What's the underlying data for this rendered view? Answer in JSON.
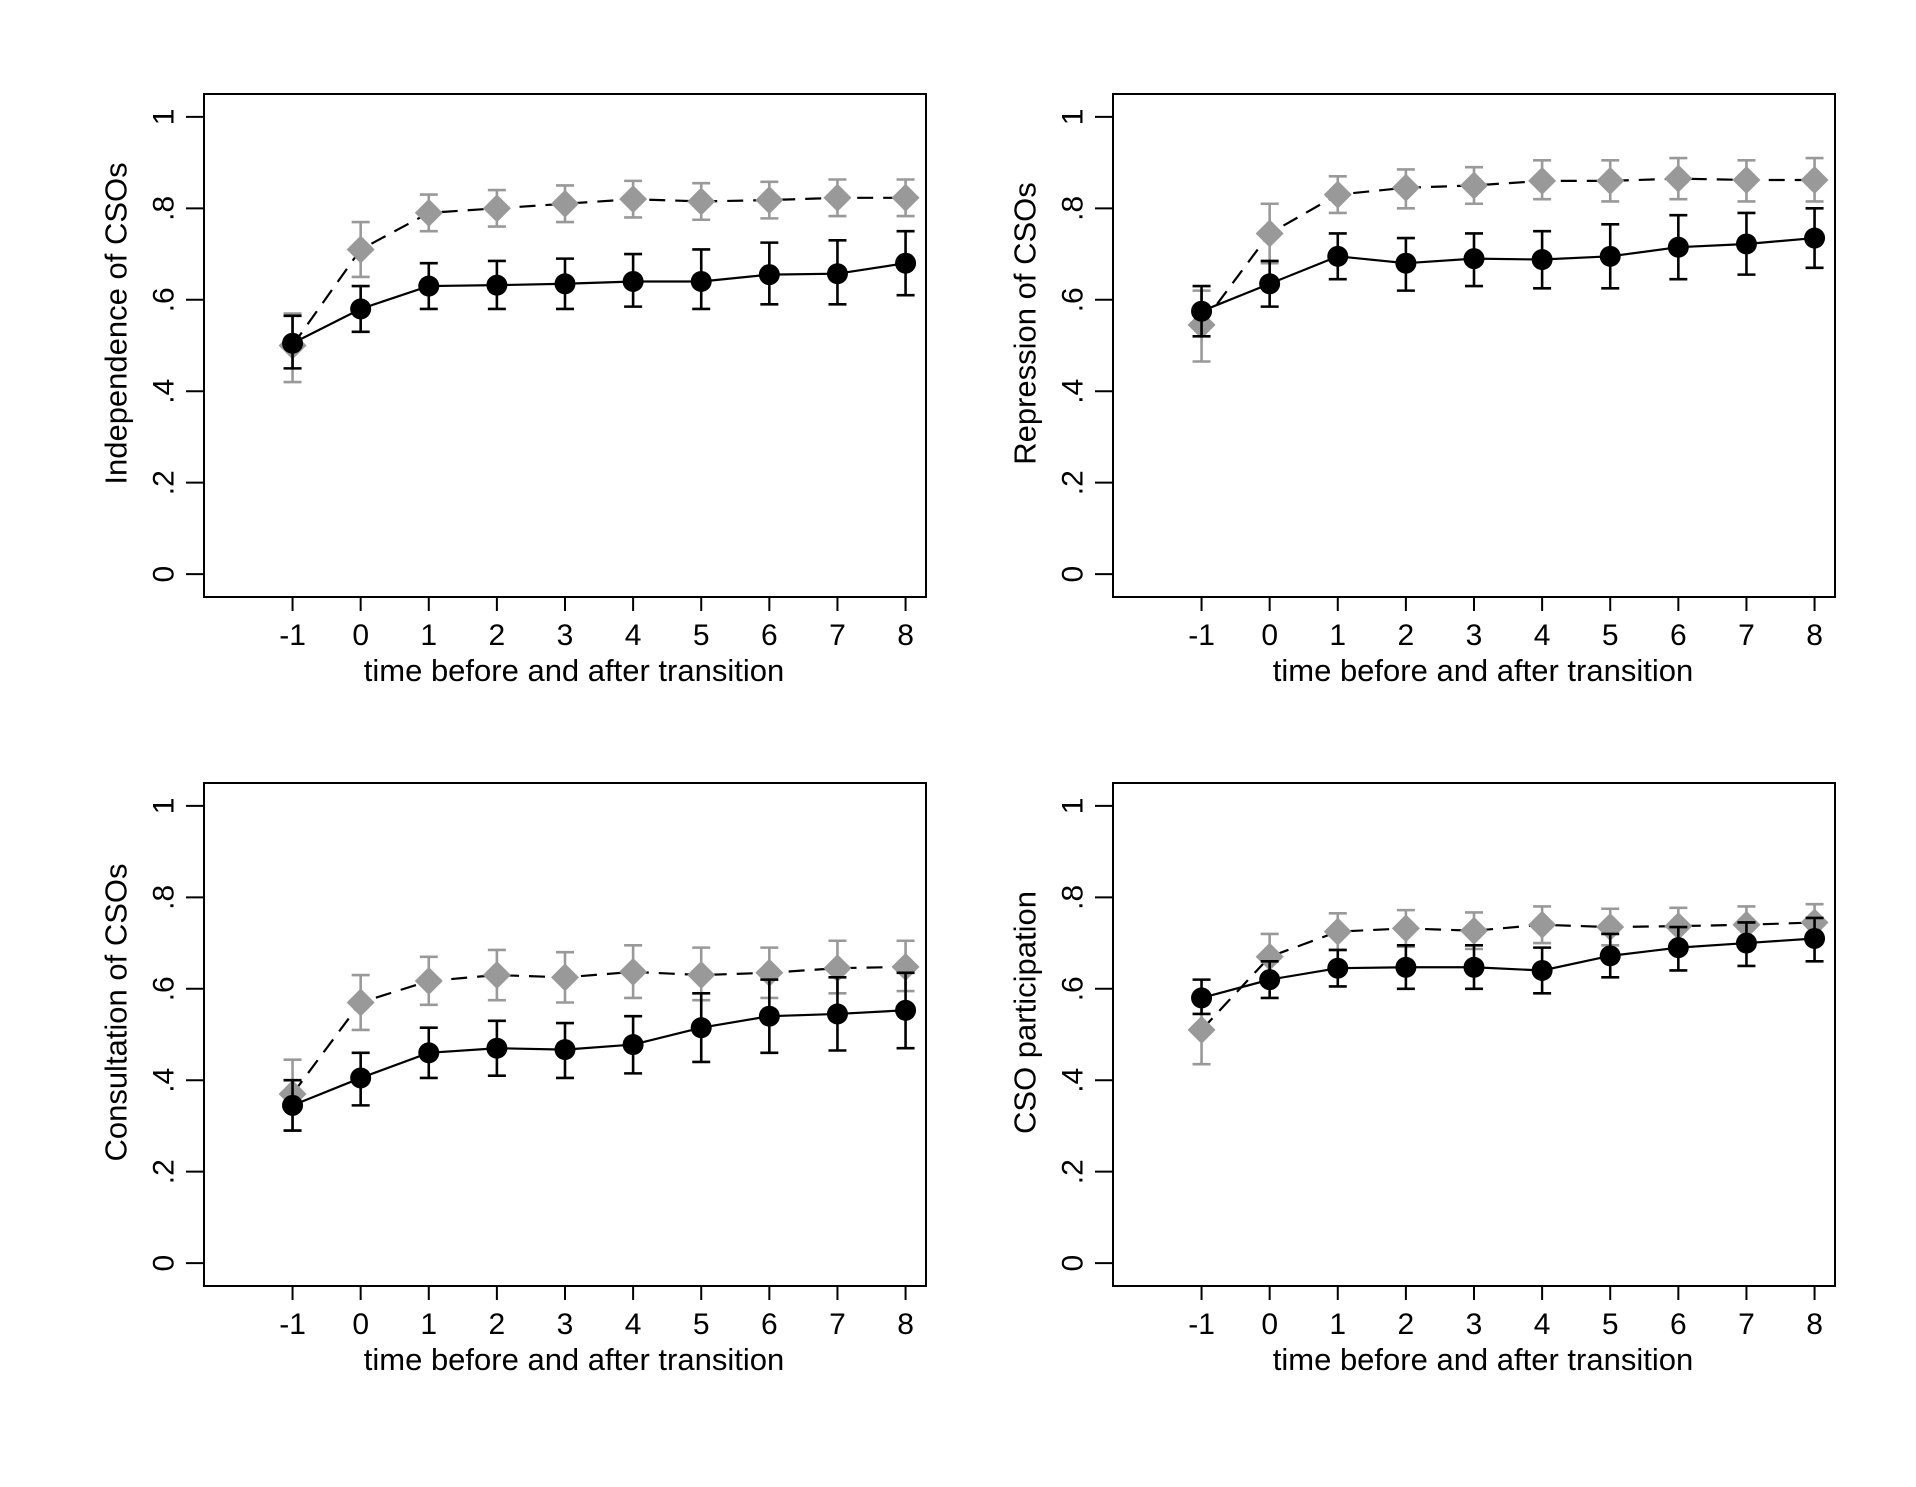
{
  "chart_data": [
    {
      "type": "line",
      "ylabel": "Independence of CSOs",
      "xlabel": "time before and after transition",
      "x": [
        -1,
        0,
        1,
        2,
        3,
        4,
        5,
        6,
        7,
        8
      ],
      "xlim": [
        -2.3,
        8.3
      ],
      "ylim": [
        -0.05,
        1.05
      ],
      "yticks": [
        0,
        0.2,
        0.4,
        0.6,
        0.8,
        1
      ],
      "ytick_labels": [
        "0",
        ".2",
        ".4",
        ".6",
        ".8",
        "1"
      ],
      "xtick_labels": [
        "-1",
        "0",
        "1",
        "2",
        "3",
        "4",
        "5",
        "6",
        "7",
        "8"
      ],
      "grid": false,
      "series": [
        {
          "style": "dashed",
          "marker": "diamond",
          "color": "#999999",
          "values": [
            0.5,
            0.71,
            0.79,
            0.8,
            0.81,
            0.82,
            0.815,
            0.818,
            0.823,
            0.823
          ],
          "lower": [
            0.42,
            0.65,
            0.75,
            0.76,
            0.77,
            0.78,
            0.775,
            0.778,
            0.783,
            0.783
          ],
          "upper": [
            0.57,
            0.77,
            0.83,
            0.84,
            0.85,
            0.86,
            0.855,
            0.858,
            0.863,
            0.863
          ]
        },
        {
          "style": "solid",
          "marker": "circle",
          "color": "#000000",
          "values": [
            0.505,
            0.58,
            0.63,
            0.632,
            0.635,
            0.64,
            0.64,
            0.655,
            0.657,
            0.68
          ],
          "lower": [
            0.45,
            0.53,
            0.58,
            0.58,
            0.58,
            0.585,
            0.58,
            0.59,
            0.59,
            0.61
          ],
          "upper": [
            0.565,
            0.63,
            0.68,
            0.685,
            0.69,
            0.7,
            0.71,
            0.725,
            0.73,
            0.75
          ]
        }
      ]
    },
    {
      "type": "line",
      "ylabel": "Repression of CSOs",
      "xlabel": "time before and after transition",
      "x": [
        -1,
        0,
        1,
        2,
        3,
        4,
        5,
        6,
        7,
        8
      ],
      "xlim": [
        -2.3,
        8.3
      ],
      "ylim": [
        -0.05,
        1.05
      ],
      "yticks": [
        0,
        0.2,
        0.4,
        0.6,
        0.8,
        1
      ],
      "ytick_labels": [
        "0",
        ".2",
        ".4",
        ".6",
        ".8",
        "1"
      ],
      "xtick_labels": [
        "-1",
        "0",
        "1",
        "2",
        "3",
        "4",
        "5",
        "6",
        "7",
        "8"
      ],
      "grid": false,
      "series": [
        {
          "style": "dashed",
          "marker": "diamond",
          "color": "#999999",
          "values": [
            0.545,
            0.745,
            0.83,
            0.845,
            0.85,
            0.86,
            0.86,
            0.865,
            0.862,
            0.862
          ],
          "lower": [
            0.465,
            0.68,
            0.79,
            0.8,
            0.81,
            0.82,
            0.815,
            0.82,
            0.815,
            0.815
          ],
          "upper": [
            0.62,
            0.81,
            0.87,
            0.885,
            0.89,
            0.905,
            0.905,
            0.91,
            0.905,
            0.91
          ]
        },
        {
          "style": "solid",
          "marker": "circle",
          "color": "#000000",
          "values": [
            0.575,
            0.635,
            0.695,
            0.68,
            0.69,
            0.688,
            0.695,
            0.715,
            0.722,
            0.735
          ],
          "lower": [
            0.52,
            0.585,
            0.645,
            0.62,
            0.63,
            0.625,
            0.625,
            0.645,
            0.655,
            0.67
          ],
          "upper": [
            0.63,
            0.685,
            0.745,
            0.735,
            0.745,
            0.75,
            0.765,
            0.785,
            0.79,
            0.8
          ]
        }
      ]
    },
    {
      "type": "line",
      "ylabel": "Consultation of CSOs",
      "xlabel": "time before and after transition",
      "x": [
        -1,
        0,
        1,
        2,
        3,
        4,
        5,
        6,
        7,
        8
      ],
      "xlim": [
        -2.3,
        8.3
      ],
      "ylim": [
        -0.05,
        1.05
      ],
      "yticks": [
        0,
        0.2,
        0.4,
        0.6,
        0.8,
        1
      ],
      "ytick_labels": [
        "0",
        ".2",
        ".4",
        ".6",
        ".8",
        "1"
      ],
      "xtick_labels": [
        "-1",
        "0",
        "1",
        "2",
        "3",
        "4",
        "5",
        "6",
        "7",
        "8"
      ],
      "grid": false,
      "series": [
        {
          "style": "dashed",
          "marker": "diamond",
          "color": "#999999",
          "values": [
            0.37,
            0.57,
            0.617,
            0.63,
            0.625,
            0.637,
            0.63,
            0.635,
            0.645,
            0.648
          ],
          "lower": [
            0.29,
            0.51,
            0.565,
            0.575,
            0.57,
            0.58,
            0.575,
            0.58,
            0.59,
            0.595
          ],
          "upper": [
            0.445,
            0.63,
            0.67,
            0.685,
            0.68,
            0.695,
            0.69,
            0.69,
            0.705,
            0.705
          ]
        },
        {
          "style": "solid",
          "marker": "circle",
          "color": "#000000",
          "values": [
            0.345,
            0.405,
            0.46,
            0.47,
            0.467,
            0.478,
            0.515,
            0.54,
            0.545,
            0.553
          ],
          "lower": [
            0.29,
            0.345,
            0.405,
            0.41,
            0.405,
            0.415,
            0.44,
            0.46,
            0.465,
            0.47
          ],
          "upper": [
            0.4,
            0.46,
            0.515,
            0.53,
            0.525,
            0.54,
            0.59,
            0.62,
            0.625,
            0.635
          ]
        }
      ]
    },
    {
      "type": "line",
      "ylabel": "CSO participation",
      "xlabel": "time before and after transition",
      "x": [
        -1,
        0,
        1,
        2,
        3,
        4,
        5,
        6,
        7,
        8
      ],
      "xlim": [
        -2.3,
        8.3
      ],
      "ylim": [
        -0.05,
        1.05
      ],
      "yticks": [
        0,
        0.2,
        0.4,
        0.6,
        0.8,
        1
      ],
      "ytick_labels": [
        "0",
        ".2",
        ".4",
        ".6",
        ".8",
        "1"
      ],
      "xtick_labels": [
        "-1",
        "0",
        "1",
        "2",
        "3",
        "4",
        "5",
        "6",
        "7",
        "8"
      ],
      "grid": false,
      "series": [
        {
          "style": "dashed",
          "marker": "diamond",
          "color": "#999999",
          "values": [
            0.51,
            0.67,
            0.725,
            0.732,
            0.727,
            0.74,
            0.735,
            0.737,
            0.74,
            0.745
          ],
          "lower": [
            0.435,
            0.62,
            0.685,
            0.692,
            0.687,
            0.7,
            0.695,
            0.697,
            0.7,
            0.705
          ],
          "upper": [
            0.585,
            0.72,
            0.765,
            0.772,
            0.767,
            0.78,
            0.775,
            0.777,
            0.78,
            0.785
          ]
        },
        {
          "style": "solid",
          "marker": "circle",
          "color": "#000000",
          "values": [
            0.58,
            0.62,
            0.645,
            0.647,
            0.647,
            0.64,
            0.672,
            0.69,
            0.7,
            0.71
          ],
          "lower": [
            0.545,
            0.58,
            0.605,
            0.6,
            0.6,
            0.59,
            0.625,
            0.64,
            0.65,
            0.66
          ],
          "upper": [
            0.62,
            0.66,
            0.685,
            0.695,
            0.695,
            0.69,
            0.72,
            0.735,
            0.745,
            0.755
          ]
        }
      ]
    }
  ]
}
